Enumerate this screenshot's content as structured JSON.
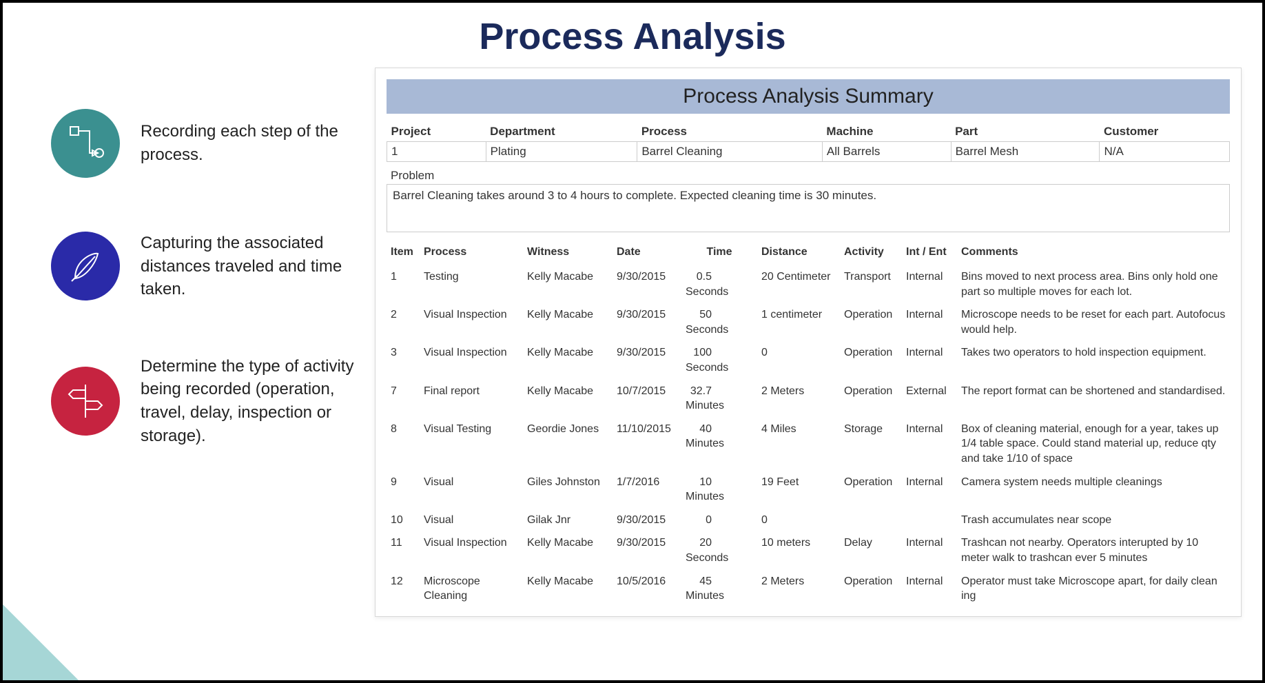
{
  "title": "Process Analysis",
  "colors": {
    "title_text": "#1b2a5b",
    "panel_header_bg": "#a8b9d6",
    "icon_teal": "#3b9090",
    "icon_blue": "#2a2aa8",
    "icon_red": "#c62340",
    "corner_triangle": "#a6d6d6",
    "border": "#000000",
    "text": "#222222"
  },
  "bullets": [
    {
      "text": "Recording each step of the process.",
      "icon": "flow-icon",
      "bg": "#3b9090"
    },
    {
      "text": "Capturing the associated distances traveled and time taken.",
      "icon": "feather-icon",
      "bg": "#2a2aa8"
    },
    {
      "text": "Determine the type of activity being recorded (operation, travel, delay, inspection or storage).",
      "icon": "signpost-icon",
      "bg": "#c62340"
    }
  ],
  "panel": {
    "header": "Process Analysis Summary",
    "meta": {
      "labels": {
        "project": "Project",
        "department": "Department",
        "process": "Process",
        "machine": "Machine",
        "part": "Part",
        "customer": "Customer"
      },
      "values": {
        "project": "1",
        "department": "Plating",
        "process": "Barrel Cleaning",
        "machine": "All Barrels",
        "part": "Barrel Mesh",
        "customer": "N/A"
      }
    },
    "problem_label": "Problem",
    "problem_text": "Barrel Cleaning takes around 3 to 4 hours to complete. Expected cleaning time is 30 minutes.",
    "columns": [
      "Item",
      "Process",
      "Witness",
      "Date",
      "Time",
      "Distance",
      "Activity",
      "Int / Ent",
      "Comments"
    ],
    "rows": [
      {
        "item": "1",
        "process": "Testing",
        "witness": "Kelly Macabe",
        "date": "9/30/2015",
        "time_val": "0.5",
        "time_unit": "Seconds",
        "distance": "20 Centimeter",
        "activity": "Transport",
        "intent": "Internal",
        "comments": "Bins moved to next process area. Bins only hold one part so multiple moves for each lot."
      },
      {
        "item": "2",
        "process": "Visual Inspection",
        "witness": "Kelly Macabe",
        "date": "9/30/2015",
        "time_val": "50",
        "time_unit": "Seconds",
        "distance": "1 centimeter",
        "activity": "Operation",
        "intent": "Internal",
        "comments": "Microscope needs to be reset for each part. Autofocus would help."
      },
      {
        "item": "3",
        "process": "Visual Inspection",
        "witness": "Kelly Macabe",
        "date": "9/30/2015",
        "time_val": "100",
        "time_unit": "Seconds",
        "distance": "0",
        "activity": "Operation",
        "intent": "Internal",
        "comments": "Takes two operators to hold inspection equipment."
      },
      {
        "item": "7",
        "process": "Final report",
        "witness": "Kelly Macabe",
        "date": "10/7/2015",
        "time_val": "32.7",
        "time_unit": "Minutes",
        "distance": "2 Meters",
        "activity": "Operation",
        "intent": "External",
        "comments": "The report format can be shortened and standardised."
      },
      {
        "item": "8",
        "process": "Visual Testing",
        "witness": "Geordie Jones",
        "date": "11/10/2015",
        "time_val": "40",
        "time_unit": "Minutes",
        "distance": "4 Miles",
        "activity": "Storage",
        "intent": "Internal",
        "comments": "Box of cleaning material, enough for a year, takes up 1/4 table space. Could stand material up, reduce qty and take 1/10 of space"
      },
      {
        "item": "9",
        "process": "Visual",
        "witness": "Giles Johnston",
        "date": "1/7/2016",
        "time_val": "10",
        "time_unit": "Minutes",
        "distance": "19 Feet",
        "activity": "Operation",
        "intent": "Internal",
        "comments": "Camera system needs multiple cleanings"
      },
      {
        "item": "10",
        "process": "Visual",
        "witness": "Gilak Jnr",
        "date": "9/30/2015",
        "time_val": "0",
        "time_unit": "",
        "distance": "0",
        "activity": "",
        "intent": "",
        "comments": "Trash accumulates near scope"
      },
      {
        "item": "11",
        "process": "Visual Inspection",
        "witness": "Kelly Macabe",
        "date": "9/30/2015",
        "time_val": "20",
        "time_unit": "Seconds",
        "distance": "10 meters",
        "activity": "Delay",
        "intent": "Internal",
        "comments": "Trashcan not nearby. Operators interupted by 10 meter walk to trashcan ever 5 minutes"
      },
      {
        "item": "12",
        "process": "Microscope Cleaning",
        "witness": "Kelly Macabe",
        "date": "10/5/2016",
        "time_val": "45",
        "time_unit": "Minutes",
        "distance": "2 Meters",
        "activity": "Operation",
        "intent": "Internal",
        "comments": "Operator must take Microscope apart, for daily clean\ning"
      }
    ]
  }
}
